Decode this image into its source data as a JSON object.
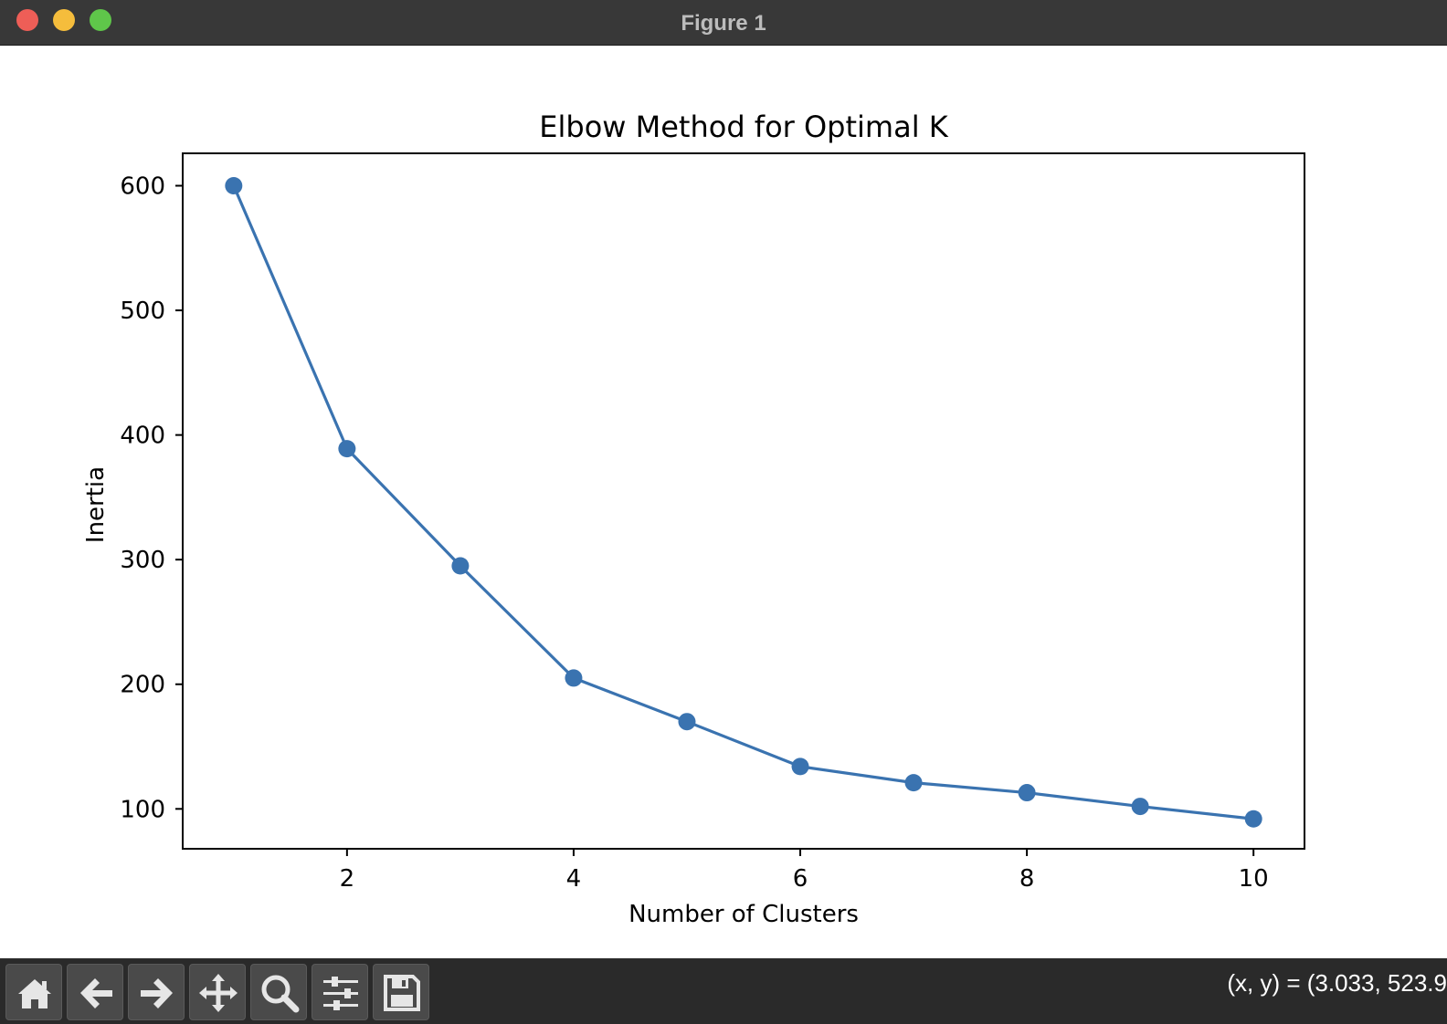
{
  "window": {
    "title": "Figure 1"
  },
  "toolbar": {
    "buttons": [
      "home-icon",
      "back-arrow-icon",
      "forward-arrow-icon",
      "pan-move-icon",
      "zoom-magnifier-icon",
      "configure-subplots-icon",
      "save-floppy-icon"
    ],
    "coords_text": "(x, y) = (3.033, 523.9"
  },
  "colors": {
    "line": "#3a73b0",
    "titlebar": "#383838",
    "toolbar": "#2a2a2a"
  },
  "chart_data": {
    "type": "line",
    "title": "Elbow Method for Optimal K",
    "xlabel": "Number of Clusters",
    "ylabel": "Inertia",
    "x": [
      1,
      2,
      3,
      4,
      5,
      6,
      7,
      8,
      9,
      10
    ],
    "series": [
      {
        "values": [
          600,
          389,
          295,
          205,
          170,
          134,
          121,
          113,
          102,
          92
        ],
        "marker": "circle"
      }
    ],
    "xticks": [
      2,
      4,
      6,
      8,
      10
    ],
    "xtick_labels": [
      "2",
      "4",
      "6",
      "8",
      "10"
    ],
    "yticks": [
      100,
      200,
      300,
      400,
      500,
      600
    ],
    "ytick_labels": [
      "100",
      "200",
      "300",
      "400",
      "500",
      "600"
    ],
    "xlim": [
      0.55,
      10.45
    ],
    "ylim": [
      68,
      626
    ],
    "grid": false
  }
}
